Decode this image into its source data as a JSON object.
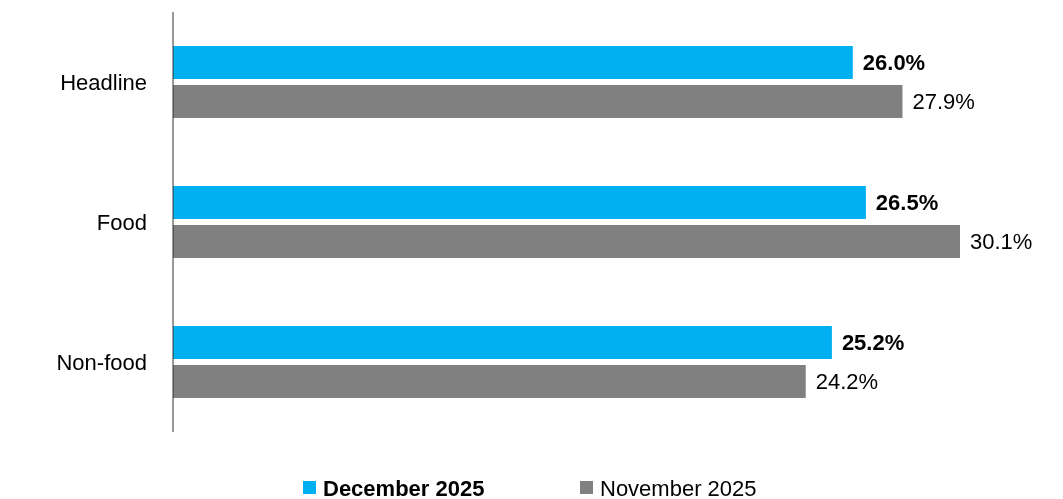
{
  "chart_data": {
    "type": "bar",
    "orientation": "horizontal",
    "categories": [
      "Headline",
      "Food",
      "Non-food"
    ],
    "series": [
      {
        "name": "December 2025",
        "color": "#00b0f0",
        "values": [
          26.0,
          26.5,
          25.2
        ],
        "value_labels": [
          "26.0%",
          "26.5%",
          "25.2%"
        ]
      },
      {
        "name": "November 2025",
        "color": "#808080",
        "values": [
          27.9,
          30.1,
          24.2
        ],
        "value_labels": [
          "27.9%",
          "30.1%",
          "24.2%"
        ]
      }
    ],
    "legend": "bottom"
  }
}
